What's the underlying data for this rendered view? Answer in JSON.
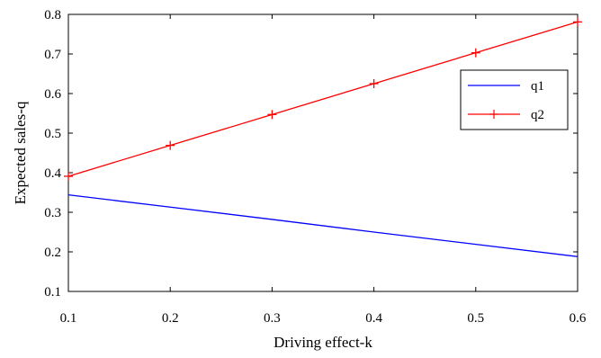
{
  "chart_data": {
    "type": "line",
    "xlabel": "Driving effect-k",
    "ylabel": "Expected sales-q",
    "xlim": [
      0.1,
      0.6
    ],
    "ylim": [
      0.1,
      0.8
    ],
    "x_ticks": [
      "0.1",
      "0.2",
      "0.3",
      "0.4",
      "0.5",
      "0.6"
    ],
    "y_ticks": [
      "0.1",
      "0.2",
      "0.3",
      "0.4",
      "0.5",
      "0.6",
      "0.7",
      "0.8"
    ],
    "grid": false,
    "legend_position": "top-right",
    "series": [
      {
        "name": "q1",
        "color": "#0000ff",
        "marker": "none",
        "x": [
          0.1,
          0.2,
          0.3,
          0.4,
          0.5,
          0.6
        ],
        "y": [
          0.344,
          0.313,
          0.282,
          0.25,
          0.219,
          0.188
        ]
      },
      {
        "name": "q2",
        "color": "#ff0000",
        "marker": "plus",
        "x": [
          0.1,
          0.2,
          0.3,
          0.4,
          0.5,
          0.6
        ],
        "y": [
          0.391,
          0.469,
          0.547,
          0.625,
          0.703,
          0.781
        ]
      }
    ]
  }
}
